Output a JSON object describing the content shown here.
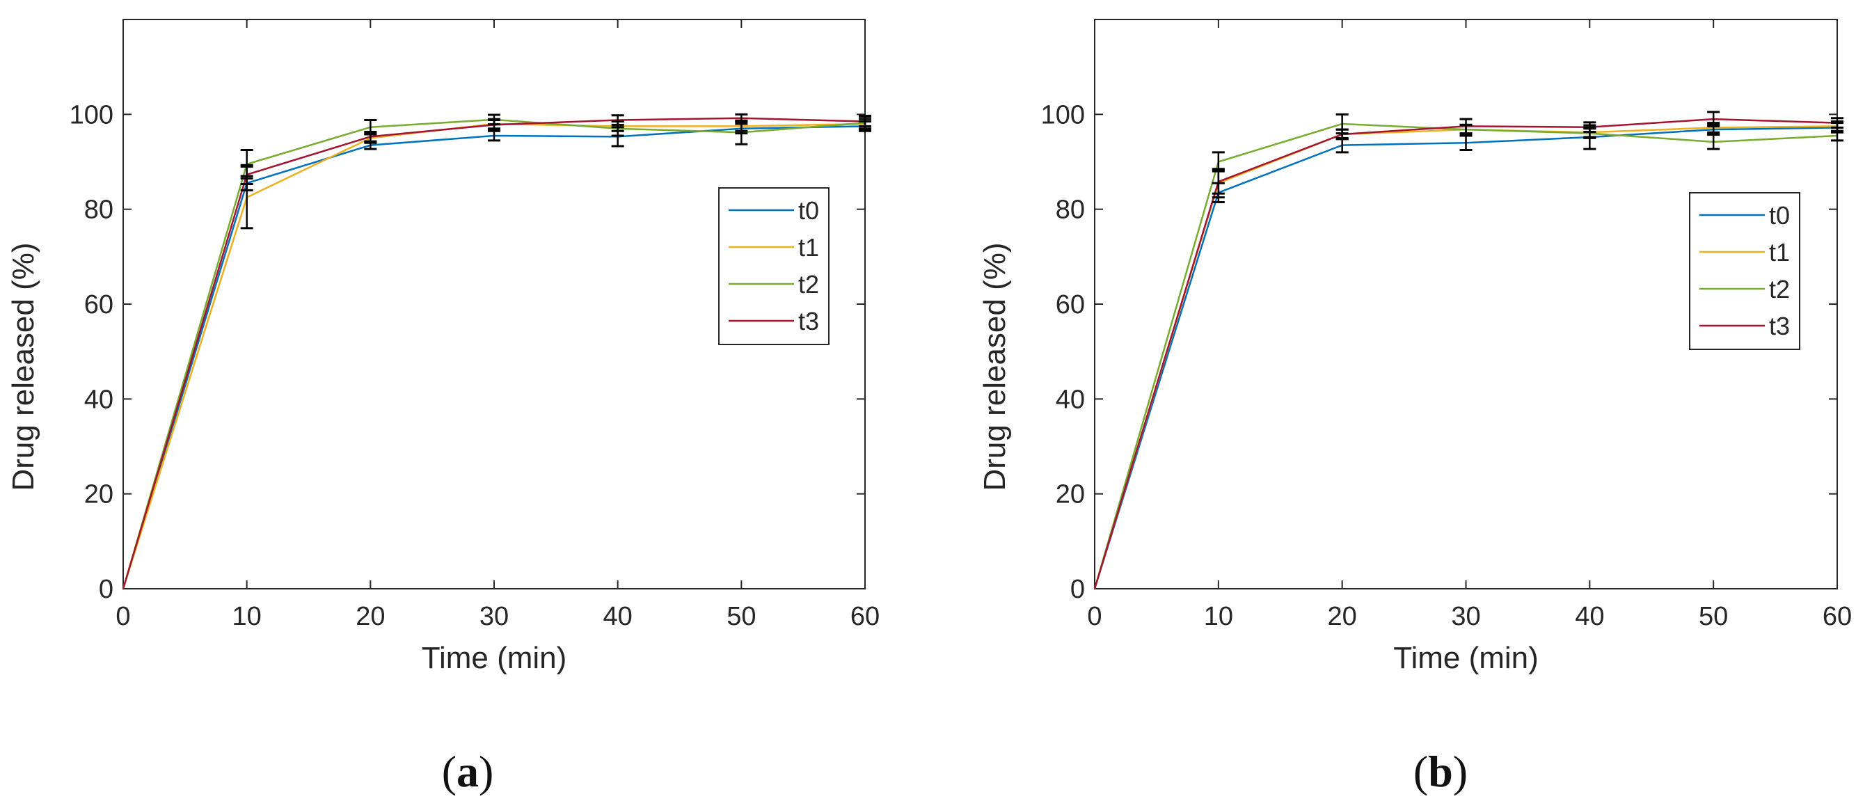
{
  "chart_data": [
    {
      "type": "line",
      "panel": "a",
      "panel_open": "(",
      "panel_close": ")",
      "title": "",
      "xlabel": "Time (min)",
      "ylabel": "Drug released (%)",
      "xlim": [
        0,
        60
      ],
      "ylim": [
        0,
        120
      ],
      "xticks": [
        0,
        10,
        20,
        30,
        40,
        50,
        60
      ],
      "yticks": [
        0,
        20,
        40,
        60,
        80,
        100
      ],
      "legend_position": "right-middle",
      "x": [
        0,
        10,
        20,
        30,
        40,
        50,
        60
      ],
      "series": [
        {
          "name": "t0",
          "color": "#0072BD",
          "values": [
            0,
            85.5,
            93.5,
            95.5,
            95.3,
            97.0,
            97.5
          ],
          "errors": [
            0,
            1.5,
            0.8,
            1.0,
            2.0,
            1.0,
            1.0
          ]
        },
        {
          "name": "t1",
          "color": "#EDB120",
          "values": [
            0,
            82.5,
            95.0,
            98.0,
            97.5,
            97.5,
            98.0
          ],
          "errors": [
            0,
            6.5,
            1.0,
            1.0,
            1.0,
            1.0,
            1.0
          ]
        },
        {
          "name": "t2",
          "color": "#77AC30",
          "values": [
            0,
            89.5,
            97.3,
            98.9,
            97.0,
            96.2,
            98.2
          ],
          "errors": [
            0,
            3.0,
            1.5,
            1.0,
            1.5,
            2.5,
            1.5
          ]
        },
        {
          "name": "t3",
          "color": "#A2142F",
          "values": [
            0,
            87.3,
            95.3,
            97.8,
            98.8,
            99.2,
            98.5
          ],
          "errors": [
            0,
            2.0,
            1.0,
            1.0,
            1.0,
            0.8,
            1.0
          ]
        }
      ]
    },
    {
      "type": "line",
      "panel": "b",
      "panel_open": "(",
      "panel_close": ")",
      "title": "",
      "xlabel": "Time (min)",
      "ylabel": "Drug released (%)",
      "xlim": [
        0,
        60
      ],
      "ylim": [
        0,
        120
      ],
      "xticks": [
        0,
        10,
        20,
        30,
        40,
        50,
        60
      ],
      "yticks": [
        0,
        20,
        40,
        60,
        80,
        100
      ],
      "legend_position": "right-middle",
      "x": [
        0,
        10,
        20,
        30,
        40,
        50,
        60
      ],
      "series": [
        {
          "name": "t0",
          "color": "#0072BD",
          "values": [
            0,
            83.5,
            93.5,
            94.0,
            95.2,
            96.8,
            97.2
          ],
          "errors": [
            0,
            2.0,
            1.5,
            1.5,
            2.5,
            1.0,
            1.0
          ]
        },
        {
          "name": "t1",
          "color": "#EDB120",
          "values": [
            0,
            85.5,
            95.8,
            96.8,
            96.2,
            97.2,
            97.5
          ],
          "errors": [
            0,
            3.0,
            1.0,
            1.0,
            1.0,
            1.0,
            1.0
          ]
        },
        {
          "name": "t2",
          "color": "#77AC30",
          "values": [
            0,
            90.0,
            98.0,
            96.8,
            96.0,
            94.2,
            95.5
          ],
          "errors": [
            0,
            2.0,
            2.0,
            1.0,
            1.0,
            1.5,
            1.0
          ]
        },
        {
          "name": "t3",
          "color": "#A2142F",
          "values": [
            0,
            85.8,
            95.8,
            97.5,
            97.3,
            99.0,
            98.2
          ],
          "errors": [
            0,
            2.5,
            1.0,
            1.5,
            1.0,
            1.5,
            1.0
          ]
        }
      ]
    }
  ]
}
